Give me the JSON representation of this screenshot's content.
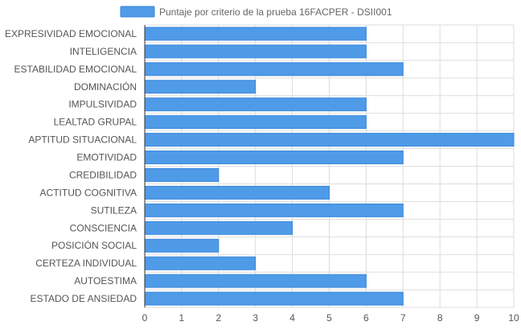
{
  "chart_data": {
    "type": "bar",
    "orientation": "horizontal",
    "categories": [
      "EXPRESIVIDAD EMOCIONAL",
      "INTELIGENCIA",
      "ESTABILIDAD EMOCIONAL",
      "DOMINACIÓN",
      "IMPULSIVIDAD",
      "LEALTAD GRUPAL",
      "APTITUD SITUACIONAL",
      "EMOTIVIDAD",
      "CREDIBILIDAD",
      "ACTITUD COGNITIVA",
      "SUTILEZA",
      "CONSCIENCIA",
      "POSICIÓN SOCIAL",
      "CERTEZA INDIVIDUAL",
      "AUTOESTIMA",
      "ESTADO DE ANSIEDAD"
    ],
    "series": [
      {
        "name": "Puntaje por criterio de la prueba 16FACPER - DSII001",
        "values": [
          6,
          6,
          7,
          3,
          6,
          6,
          10,
          7,
          2,
          5,
          7,
          4,
          2,
          3,
          6,
          7
        ],
        "color": "#4f9be8"
      }
    ],
    "xlim": [
      0,
      10
    ],
    "xticks": [
      "0",
      "1",
      "2",
      "3",
      "4",
      "5",
      "6",
      "7",
      "8",
      "9",
      "10"
    ],
    "grid": true,
    "legend": "top-center",
    "colors": {
      "bar": "#4f9be8",
      "bar_border": "#3a86d9",
      "grid": "#dddddd",
      "axis": "#333333",
      "text": "#555555"
    }
  }
}
